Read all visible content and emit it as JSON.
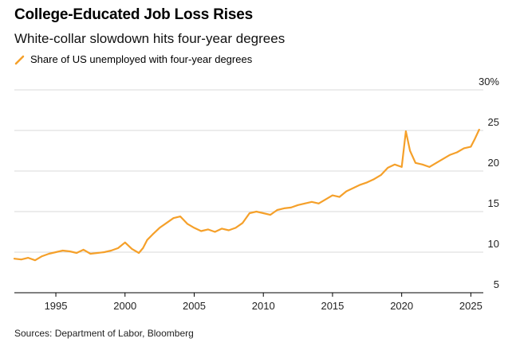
{
  "title": "College-Educated Job Loss Rises",
  "subtitle": "White-collar slowdown hits four-year degrees",
  "source": "Sources: Department of Labor, Bloomberg",
  "colors": {
    "series": "#F5A02A",
    "grid": "#d9d9d9",
    "axis": "#000000"
  },
  "chart_data": {
    "type": "line",
    "ylim": [
      5,
      30
    ],
    "xlim": [
      1992.0,
      2025.9
    ],
    "y_ticks": [
      5,
      10,
      15,
      20,
      25,
      30
    ],
    "y_tick_labels": [
      "5",
      "10",
      "15",
      "20",
      "25",
      "30%"
    ],
    "x_ticks": [
      1995,
      2000,
      2005,
      2010,
      2015,
      2020,
      2025
    ],
    "x_tick_labels": [
      "1995",
      "2000",
      "2005",
      "2010",
      "2015",
      "2020",
      "2025"
    ],
    "grid": true,
    "legend_position": "top-left",
    "series": [
      {
        "name": "Share of US unemployed with four-year degrees",
        "x": [
          1992.0,
          1992.5,
          1993.0,
          1993.5,
          1994.0,
          1994.5,
          1995.0,
          1995.5,
          1996.0,
          1996.5,
          1997.0,
          1997.5,
          1998.0,
          1998.5,
          1999.0,
          1999.5,
          2000.0,
          2000.5,
          2001.0,
          2001.3,
          2001.6,
          2002.0,
          2002.5,
          2003.0,
          2003.5,
          2004.0,
          2004.5,
          2005.0,
          2005.5,
          2006.0,
          2006.5,
          2007.0,
          2007.5,
          2008.0,
          2008.5,
          2009.0,
          2009.5,
          2010.0,
          2010.5,
          2011.0,
          2011.5,
          2012.0,
          2012.5,
          2013.0,
          2013.5,
          2014.0,
          2014.5,
          2015.0,
          2015.5,
          2016.0,
          2016.5,
          2017.0,
          2017.5,
          2018.0,
          2018.5,
          2019.0,
          2019.5,
          2020.0,
          2020.3,
          2020.6,
          2021.0,
          2021.5,
          2022.0,
          2022.5,
          2023.0,
          2023.5,
          2024.0,
          2024.5,
          2025.0,
          2025.3,
          2025.6
        ],
        "values": [
          9.2,
          9.1,
          9.3,
          9.0,
          9.5,
          9.8,
          10.0,
          10.2,
          10.1,
          9.9,
          10.3,
          9.8,
          9.9,
          10.0,
          10.2,
          10.5,
          11.2,
          10.4,
          9.9,
          10.5,
          11.5,
          12.2,
          13.0,
          13.6,
          14.2,
          14.4,
          13.5,
          13.0,
          12.6,
          12.8,
          12.5,
          12.9,
          12.7,
          13.0,
          13.6,
          14.8,
          15.0,
          14.8,
          14.6,
          15.2,
          15.4,
          15.5,
          15.8,
          16.0,
          16.2,
          16.0,
          16.5,
          17.0,
          16.8,
          17.5,
          17.9,
          18.3,
          18.6,
          19.0,
          19.5,
          20.4,
          20.8,
          20.5,
          24.9,
          22.5,
          21.0,
          20.8,
          20.5,
          21.0,
          21.5,
          22.0,
          22.3,
          22.8,
          23.0,
          24.0,
          25.1
        ]
      }
    ]
  }
}
